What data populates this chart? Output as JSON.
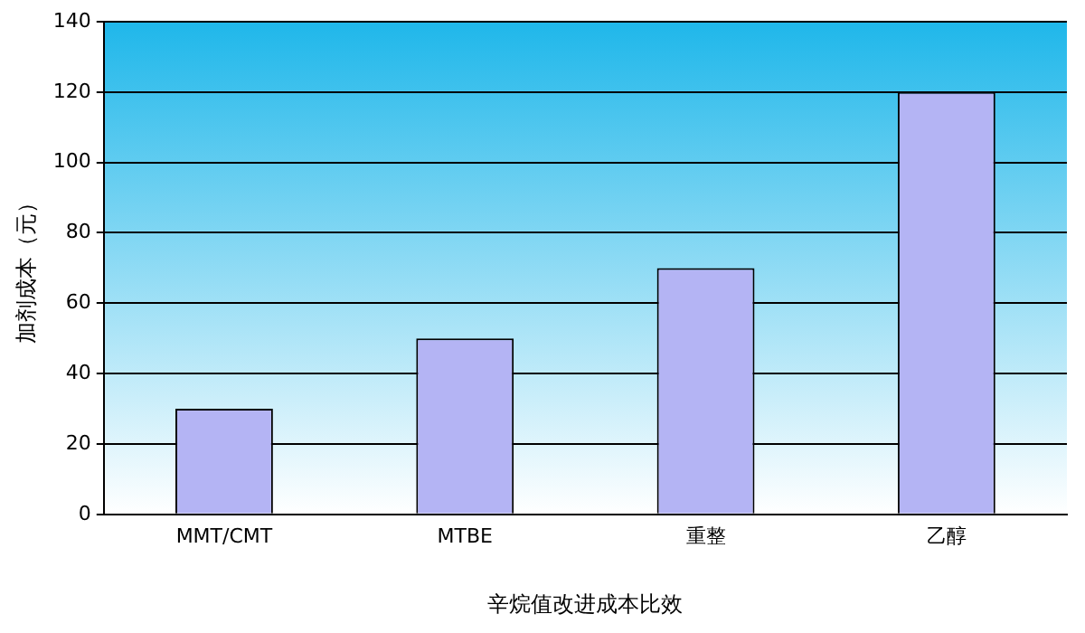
{
  "chart_data": {
    "type": "bar",
    "ylabel": "加剂成本（元）",
    "xlabel": "辛烷值改进成本比效",
    "categories": [
      "MMT/CMT",
      "MTBE",
      "重整",
      "乙醇"
    ],
    "values": [
      30,
      50,
      70,
      120
    ],
    "color": "#b4b4f4",
    "ylim": [
      0,
      140
    ],
    "yticks": [
      0,
      20,
      40,
      60,
      80,
      100,
      120,
      140
    ],
    "grid": "y"
  }
}
